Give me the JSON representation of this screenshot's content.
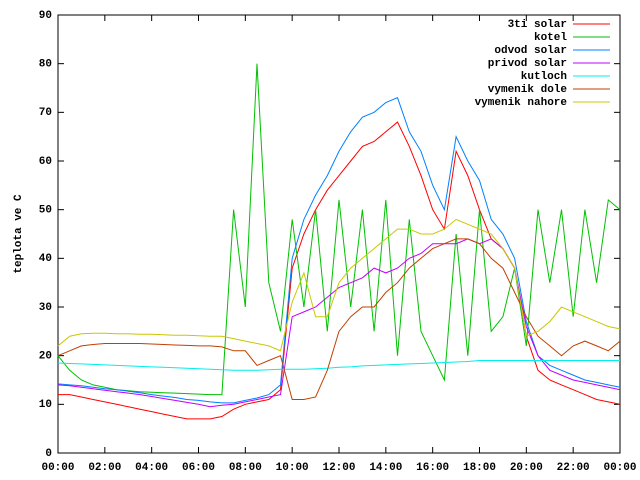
{
  "chart_data": {
    "type": "line",
    "ylabel": "teplota ve C",
    "xlim": [
      0,
      24
    ],
    "ylim": [
      0,
      90
    ],
    "xticks": [
      {
        "value": 0,
        "label": "00:00"
      },
      {
        "value": 2,
        "label": "02:00"
      },
      {
        "value": 4,
        "label": "04:00"
      },
      {
        "value": 6,
        "label": "06:00"
      },
      {
        "value": 8,
        "label": "08:00"
      },
      {
        "value": 10,
        "label": "10:00"
      },
      {
        "value": 12,
        "label": "12:00"
      },
      {
        "value": 14,
        "label": "14:00"
      },
      {
        "value": 16,
        "label": "16:00"
      },
      {
        "value": 18,
        "label": "18:00"
      },
      {
        "value": 20,
        "label": "20:00"
      },
      {
        "value": 22,
        "label": "22:00"
      },
      {
        "value": 24,
        "label": "00:00"
      }
    ],
    "yticks": [
      0,
      10,
      20,
      30,
      40,
      50,
      60,
      70,
      80,
      90
    ],
    "legend": "upper right",
    "x": [
      0,
      0.5,
      1,
      1.5,
      2,
      2.5,
      3,
      3.5,
      4,
      4.5,
      5,
      5.5,
      6,
      6.5,
      7,
      7.5,
      8,
      8.5,
      9,
      9.5,
      10,
      10.5,
      11,
      11.5,
      12,
      12.5,
      13,
      13.5,
      14,
      14.5,
      15,
      15.5,
      16,
      16.5,
      17,
      17.5,
      18,
      18.5,
      19,
      19.5,
      20,
      20.5,
      21,
      21.5,
      22,
      22.5,
      23,
      23.5,
      24
    ],
    "series": [
      {
        "name": "3ti solar",
        "color": "#ff0000",
        "values": [
          12,
          12,
          11.5,
          11,
          10.5,
          10,
          9.5,
          9,
          8.5,
          8,
          7.5,
          7,
          7,
          7,
          7.5,
          9,
          10,
          10.5,
          11,
          13,
          38,
          45,
          50,
          54,
          57,
          60,
          63,
          64,
          66,
          68,
          63,
          57,
          50,
          46,
          62,
          57,
          50,
          44,
          42,
          38,
          24,
          17,
          15,
          14,
          13,
          12,
          11,
          10.5,
          10
        ]
      },
      {
        "name": "kotel",
        "color": "#00c000",
        "values": [
          20,
          17,
          15,
          14,
          13.5,
          13,
          12.8,
          12.6,
          12.5,
          12.4,
          12.3,
          12.2,
          12.1,
          12,
          12,
          50,
          30,
          80,
          35,
          25,
          48,
          30,
          50,
          25,
          52,
          30,
          50,
          25,
          52,
          20,
          48,
          25,
          20,
          15,
          45,
          20,
          50,
          25,
          28,
          38,
          22,
          50,
          35,
          50,
          28,
          50,
          35,
          52,
          50
        ]
      },
      {
        "name": "odvod solar",
        "color": "#0080ff",
        "values": [
          14.2,
          14,
          13.8,
          13.5,
          13.2,
          13,
          12.7,
          12.4,
          12,
          11.7,
          11.4,
          11,
          10.8,
          10.5,
          10.3,
          10.3,
          10.8,
          11.3,
          12,
          14,
          40,
          48,
          53,
          57,
          62,
          66,
          69,
          70,
          72,
          73,
          66,
          62,
          55,
          50,
          65,
          60,
          56,
          48,
          45,
          40,
          27,
          20,
          18,
          17,
          16,
          15,
          14.5,
          14,
          13.5
        ]
      },
      {
        "name": "privod solar",
        "color": "#c000ff",
        "values": [
          14,
          13.8,
          13.5,
          13.2,
          12.9,
          12.6,
          12.3,
          12,
          11.6,
          11.2,
          10.8,
          10.4,
          10,
          9.5,
          9.8,
          10,
          10.5,
          11,
          11.5,
          12,
          28,
          29,
          30,
          32,
          34,
          35,
          36,
          38,
          37,
          38,
          40,
          41,
          43,
          43,
          43,
          44,
          43,
          44,
          42,
          38,
          26,
          20,
          17,
          16,
          15,
          14.5,
          14,
          13.5,
          13
        ]
      },
      {
        "name": "kutloch",
        "color": "#00eeee",
        "values": [
          18.5,
          18.4,
          18.3,
          18.2,
          18.1,
          18,
          17.9,
          17.8,
          17.7,
          17.6,
          17.5,
          17.4,
          17.3,
          17.2,
          17.1,
          17,
          17,
          17,
          17.1,
          17.2,
          17.2,
          17.2,
          17.3,
          17.4,
          17.6,
          17.7,
          17.9,
          18,
          18.1,
          18.2,
          18.3,
          18.4,
          18.5,
          18.6,
          18.7,
          18.8,
          19,
          19,
          19,
          19,
          19,
          19,
          19,
          19,
          19,
          19,
          19,
          19,
          19
        ]
      },
      {
        "name": "vymenik dole",
        "color": "#c04000",
        "values": [
          20,
          21,
          22,
          22.3,
          22.5,
          22.5,
          22.5,
          22.5,
          22.4,
          22.3,
          22.2,
          22.1,
          22,
          22,
          21.8,
          21,
          21,
          18,
          19,
          20,
          11,
          11,
          11.5,
          17,
          25,
          28,
          30,
          30,
          33,
          35,
          38,
          40,
          42,
          43,
          44,
          44,
          43,
          40,
          38,
          33,
          28,
          24,
          22,
          20,
          22,
          23,
          22,
          21,
          23
        ]
      },
      {
        "name": "vymenik nahore",
        "color": "#c8c800",
        "values": [
          22,
          24,
          24.5,
          24.6,
          24.6,
          24.5,
          24.5,
          24.4,
          24.4,
          24.3,
          24.2,
          24.2,
          24.1,
          24,
          24,
          23.5,
          23,
          22.5,
          22,
          21,
          31,
          37,
          28,
          28,
          35,
          38,
          40,
          42,
          44,
          46,
          46,
          45,
          45,
          46,
          48,
          47,
          46,
          45,
          42,
          38,
          24,
          25,
          27,
          30,
          29,
          28,
          27,
          26,
          25.5
        ]
      }
    ]
  }
}
